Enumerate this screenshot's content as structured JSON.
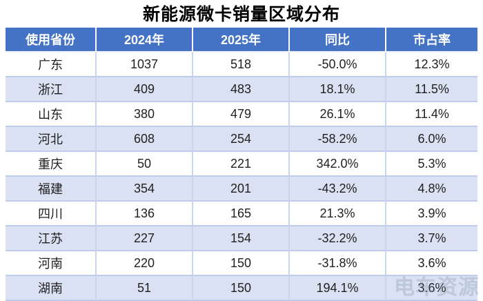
{
  "title": "新能源微卡销量区域分布",
  "watermark": "电车资源",
  "colors": {
    "header_bg": "#4472C4",
    "header_text": "#FFFFFF",
    "row_bg": "#FFFFFF",
    "row_alt_bg": "#D9E1F2",
    "border": "#BFCCEA",
    "body_text": "#1F1F1F",
    "title_text": "#000000"
  },
  "chart_data": {
    "type": "table",
    "title": "新能源微卡销量区域分布",
    "columns": [
      "使用省份",
      "2024年",
      "2025年",
      "同比",
      "市占率"
    ],
    "rows": [
      [
        "广东",
        "1037",
        "518",
        "-50.0%",
        "12.3%"
      ],
      [
        "浙江",
        "409",
        "483",
        "18.1%",
        "11.5%"
      ],
      [
        "山东",
        "380",
        "479",
        "26.1%",
        "11.4%"
      ],
      [
        "河北",
        "608",
        "254",
        "-58.2%",
        "6.0%"
      ],
      [
        "重庆",
        "50",
        "221",
        "342.0%",
        "5.3%"
      ],
      [
        "福建",
        "354",
        "201",
        "-43.2%",
        "4.8%"
      ],
      [
        "四川",
        "136",
        "165",
        "21.3%",
        "3.9%"
      ],
      [
        "江苏",
        "227",
        "154",
        "-32.2%",
        "3.7%"
      ],
      [
        "河南",
        "220",
        "150",
        "-31.8%",
        "3.6%"
      ],
      [
        "湖南",
        "51",
        "150",
        "194.1%",
        "3.6%"
      ]
    ]
  }
}
